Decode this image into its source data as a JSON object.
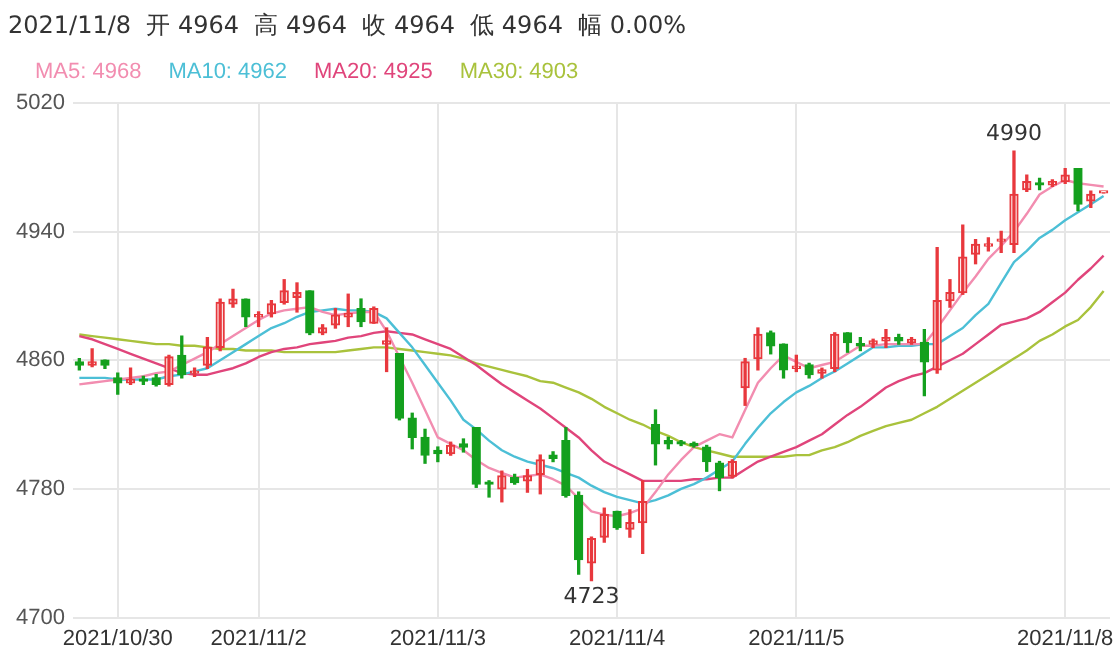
{
  "chart_data": {
    "type": "candlestick",
    "title": "2021/11/8  开 4964  高 4964  收 4964  低 4964  幅 0.00%",
    "categories": [
      null,
      null,
      null,
      "2021/10/30",
      null,
      null,
      null,
      null,
      null,
      null,
      null,
      null,
      null,
      null,
      "2021/11/2",
      null,
      null,
      null,
      null,
      null,
      null,
      null,
      null,
      null,
      null,
      null,
      null,
      null,
      "2021/11/3",
      null,
      null,
      null,
      null,
      null,
      null,
      null,
      null,
      null,
      null,
      null,
      null,
      null,
      "2021/11/4",
      null,
      null,
      null,
      null,
      null,
      null,
      null,
      null,
      null,
      null,
      null,
      null,
      null,
      "2021/11/5",
      null,
      null,
      null,
      null,
      null,
      null,
      null,
      null,
      null,
      null,
      null,
      null,
      null,
      null,
      null,
      null,
      null,
      null,
      null,
      null,
      "2021/11/8",
      null,
      null,
      null
    ],
    "ohlc": [
      [
        4859,
        4861,
        4854,
        4857
      ],
      [
        4857,
        4867,
        4856,
        4859
      ],
      [
        4860,
        4860,
        4855,
        4857
      ],
      [
        4849,
        4852,
        4839,
        4846
      ],
      [
        4846,
        4855,
        4845,
        4848
      ],
      [
        4848,
        4850,
        4845,
        4847
      ],
      [
        4849,
        4851,
        4844,
        4845
      ],
      [
        4845,
        4863,
        4844,
        4862
      ],
      [
        4863,
        4875,
        4849,
        4851
      ],
      [
        4852,
        4855,
        4850,
        4853
      ],
      [
        4857,
        4874,
        4855,
        4868
      ],
      [
        4868,
        4898,
        4866,
        4896
      ],
      [
        4895,
        4904,
        4893,
        4898
      ],
      [
        4898,
        4898,
        4881,
        4887
      ],
      [
        4887,
        4890,
        4881,
        4888
      ],
      [
        4889,
        4897,
        4887,
        4895
      ],
      [
        4896,
        4910,
        4895,
        4903
      ],
      [
        4899,
        4908,
        4890,
        4902
      ],
      [
        4903,
        4903,
        4876,
        4877
      ],
      [
        4877,
        4882,
        4876,
        4880
      ],
      [
        4882,
        4892,
        4880,
        4888
      ],
      [
        4887,
        4901,
        4881,
        4889
      ],
      [
        4892,
        4898,
        4881,
        4884
      ],
      [
        4883,
        4893,
        4883,
        4892
      ],
      [
        4870,
        4880,
        4853,
        4872
      ],
      [
        4864,
        4864,
        4823,
        4824
      ],
      [
        4824,
        4827,
        4805,
        4812
      ],
      [
        4812,
        4817,
        4796,
        4801
      ],
      [
        4804,
        4806,
        4797,
        4802
      ],
      [
        4802,
        4809,
        4801,
        4807
      ],
      [
        4808,
        4811,
        4803,
        4806
      ],
      [
        4818,
        4818,
        4781,
        4783
      ],
      [
        4784,
        4785,
        4775,
        4783
      ],
      [
        4780,
        4791,
        4772,
        4788
      ],
      [
        4787,
        4789,
        4783,
        4784
      ],
      [
        4785,
        4792,
        4778,
        4788
      ],
      [
        4789,
        4801,
        4777,
        4798
      ],
      [
        4801,
        4803,
        4797,
        4799
      ],
      [
        4810,
        4818,
        4775,
        4776
      ],
      [
        4776,
        4778,
        4727,
        4736
      ],
      [
        4734,
        4750,
        4723,
        4749
      ],
      [
        4750,
        4768,
        4747,
        4764
      ],
      [
        4766,
        4766,
        4755,
        4756
      ],
      [
        4755,
        4767,
        4750,
        4759
      ],
      [
        4759,
        4785,
        4740,
        4772
      ],
      [
        4820,
        4829,
        4795,
        4808
      ],
      [
        4810,
        4812,
        4805,
        4808
      ],
      [
        4809,
        4810,
        4807,
        4808
      ],
      [
        4808,
        4809,
        4806,
        4807
      ],
      [
        4806,
        4807,
        4791,
        4797
      ],
      [
        4796,
        4797,
        4779,
        4787
      ],
      [
        4788,
        4798,
        4787,
        4797
      ],
      [
        4843,
        4861,
        4832,
        4859
      ],
      [
        4861,
        4880,
        4854,
        4876
      ],
      [
        4877,
        4878,
        4864,
        4869
      ],
      [
        4870,
        4870,
        4849,
        4854
      ],
      [
        4855,
        4863,
        4853,
        4856
      ],
      [
        4857,
        4858,
        4849,
        4851
      ],
      [
        4852,
        4855,
        4849,
        4854
      ],
      [
        4855,
        4877,
        4853,
        4876
      ],
      [
        4877,
        4877,
        4865,
        4871
      ],
      [
        4870,
        4874,
        4866,
        4869
      ],
      [
        4870,
        4873,
        4868,
        4872
      ],
      [
        4872,
        4879,
        4868,
        4874
      ],
      [
        4874,
        4876,
        4870,
        4872
      ],
      [
        4871,
        4874,
        4870,
        4873
      ],
      [
        4871,
        4879,
        4838,
        4859
      ],
      [
        4854,
        4930,
        4852,
        4897
      ],
      [
        4897,
        4910,
        4893,
        4902
      ],
      [
        4902,
        4944,
        4901,
        4924
      ],
      [
        4926,
        4935,
        4920,
        4932
      ],
      [
        4931,
        4936,
        4928,
        4932
      ],
      [
        4934,
        4940,
        4927,
        4935
      ],
      [
        4932,
        4990,
        4927,
        4963
      ],
      [
        4966,
        4975,
        4965,
        4971
      ],
      [
        4970,
        4973,
        4966,
        4969
      ],
      [
        4969,
        4972,
        4968,
        4971
      ],
      [
        4971,
        4979,
        4970,
        4975
      ],
      [
        4979,
        4979,
        4953,
        4957
      ],
      [
        4959,
        4965,
        4955,
        4963
      ],
      [
        4964,
        4964,
        4964,
        4964
      ]
    ],
    "colors": [
      "#14a01e",
      "#e8383d",
      "#14a01e",
      "#14a01e",
      "#e8383d",
      "#14a01e",
      "#14a01e",
      "#e8383d",
      "#14a01e",
      "#e8383d",
      "#e8383d",
      "#e8383d",
      "#e8383d",
      "#14a01e",
      "#e8383d",
      "#e8383d",
      "#e8383d",
      "#e8383d",
      "#14a01e",
      "#e8383d",
      "#e8383d",
      "#e8383d",
      "#14a01e",
      "#e8383d",
      "#e8383d",
      "#14a01e",
      "#14a01e",
      "#14a01e",
      "#14a01e",
      "#e8383d",
      "#14a01e",
      "#14a01e",
      "#14a01e",
      "#e8383d",
      "#14a01e",
      "#e8383d",
      "#e8383d",
      "#14a01e",
      "#14a01e",
      "#14a01e",
      "#e8383d",
      "#e8383d",
      "#14a01e",
      "#e8383d",
      "#e8383d",
      "#14a01e",
      "#14a01e",
      "#14a01e",
      "#14a01e",
      "#14a01e",
      "#14a01e",
      "#e8383d",
      "#e8383d",
      "#e8383d",
      "#14a01e",
      "#14a01e",
      "#e8383d",
      "#14a01e",
      "#e8383d",
      "#e8383d",
      "#14a01e",
      "#14a01e",
      "#e8383d",
      "#e8383d",
      "#14a01e",
      "#e8383d",
      "#14a01e",
      "#e8383d",
      "#e8383d",
      "#e8383d",
      "#e8383d",
      "#e8383d",
      "#e8383d",
      "#e8383d",
      "#e8383d",
      "#14a01e",
      "#e8383d",
      "#e8383d",
      "#14a01e",
      "#e8383d",
      "#e8383d"
    ],
    "series": [
      {
        "name": "MA5: 4968",
        "color": "#f28db0",
        "type": "line",
        "values": [
          4845,
          4846,
          4847,
          4848,
          4849,
          4850,
          4852,
          4853,
          4857,
          4861,
          4865,
          4870,
          4875,
          4880,
          4885,
          4889,
          4891,
          4892,
          4893,
          4890,
          4888,
          4889,
          4890,
          4890,
          4878,
          4862,
          4846,
          4829,
          4812,
          4808,
          4804,
          4798,
          4793,
          4790,
          4787,
          4788,
          4789,
          4786,
          4782,
          4774,
          4766,
          4764,
          4763,
          4765,
          4768,
          4778,
          4789,
          4798,
          4806,
          4810,
          4814,
          4812,
          4829,
          4846,
          4855,
          4863,
          4859,
          4855,
          4857,
          4859,
          4864,
          4869,
          4869,
          4870,
          4870,
          4870,
          4870,
          4880,
          4891,
          4902,
          4912,
          4923,
          4931,
          4940,
          4951,
          4963,
          4968,
          4972,
          4970,
          4969,
          4968
        ]
      },
      {
        "name": "MA10: 4962",
        "color": "#4cbfd6",
        "type": "line",
        "values": [
          4849,
          4849,
          4849,
          4848,
          4848,
          4848,
          4848,
          4850,
          4851,
          4853,
          4855,
          4860,
          4865,
          4870,
          4875,
          4880,
          4883,
          4887,
          4890,
          4891,
          4892,
          4891,
          4891,
          4890,
          4886,
          4877,
          4868,
          4857,
          4846,
          4835,
          4823,
          4817,
          4810,
          4804,
          4800,
          4797,
          4795,
          4793,
          4790,
          4787,
          4782,
          4778,
          4775,
          4773,
          4771,
          4773,
          4776,
          4780,
          4783,
          4787,
          4792,
          4797,
          4808,
          4818,
          4827,
          4834,
          4840,
          4844,
          4849,
          4853,
          4858,
          4863,
          4868,
          4868,
          4869,
          4869,
          4870,
          4870,
          4875,
          4880,
          4888,
          4895,
          4908,
          4921,
          4928,
          4936,
          4941,
          4947,
          4952,
          4957,
          4962
        ]
      },
      {
        "name": "MA20: 4925",
        "color": "#e0457b",
        "type": "line",
        "values": [
          4875,
          4873,
          4870,
          4867,
          4864,
          4861,
          4858,
          4855,
          4852,
          4851,
          4851,
          4853,
          4855,
          4858,
          4862,
          4865,
          4867,
          4868,
          4870,
          4871,
          4872,
          4874,
          4875,
          4877,
          4878,
          4877,
          4876,
          4873,
          4870,
          4867,
          4862,
          4857,
          4851,
          4845,
          4840,
          4835,
          4830,
          4824,
          4818,
          4812,
          4804,
          4797,
          4793,
          4789,
          4785,
          4785,
          4785,
          4785,
          4786,
          4786,
          4787,
          4787,
          4792,
          4797,
          4800,
          4803,
          4806,
          4810,
          4814,
          4820,
          4826,
          4831,
          4837,
          4843,
          4847,
          4850,
          4852,
          4856,
          4860,
          4864,
          4870,
          4876,
          4882,
          4884,
          4886,
          4890,
          4896,
          4902,
          4910,
          4917,
          4925
        ]
      },
      {
        "name": "MA30: 4903",
        "color": "#a9c23c",
        "type": "line",
        "values": [
          4876,
          4875,
          4874,
          4873,
          4872,
          4871,
          4870,
          4870,
          4869,
          4869,
          4868,
          4867,
          4867,
          4866,
          4866,
          4866,
          4865,
          4865,
          4865,
          4865,
          4865,
          4866,
          4867,
          4868,
          4868,
          4867,
          4866,
          4865,
          4864,
          4863,
          4861,
          4858,
          4856,
          4854,
          4852,
          4850,
          4847,
          4846,
          4843,
          4840,
          4836,
          4831,
          4827,
          4823,
          4820,
          4816,
          4813,
          4809,
          4806,
          4804,
          4802,
          4800,
          4800,
          4800,
          4800,
          4800,
          4801,
          4801,
          4804,
          4806,
          4809,
          4813,
          4816,
          4819,
          4821,
          4823,
          4827,
          4831,
          4836,
          4841,
          4846,
          4851,
          4856,
          4861,
          4866,
          4872,
          4876,
          4881,
          4885,
          4893,
          4903
        ]
      }
    ],
    "annotations": [
      {
        "text": "4990",
        "y": 4990
      },
      {
        "text": "4723",
        "y": 4723
      }
    ],
    "ylim": [
      4700,
      5020
    ],
    "yticks": [
      4700,
      4780,
      4860,
      4940,
      5020
    ],
    "grid": true,
    "legend": "top left",
    "marker": "none",
    "line_style": "solid"
  }
}
